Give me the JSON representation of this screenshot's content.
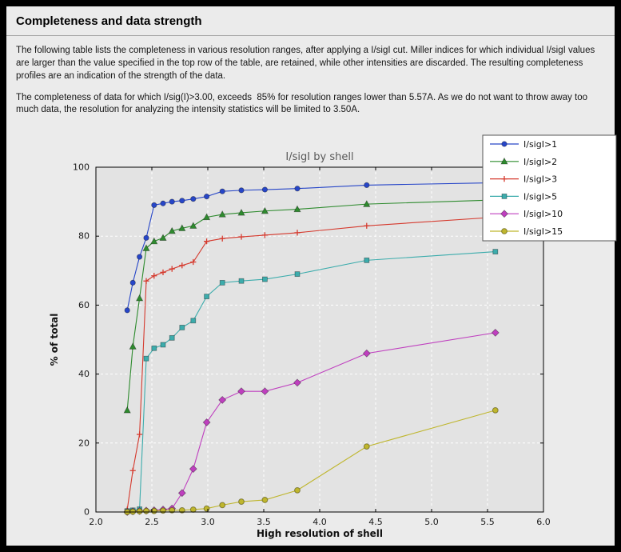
{
  "page": {
    "title": "Completeness and data strength",
    "paragraph1": "The following table lists the completeness in various resolution ranges, after applying a I/sigI cut. Miller indices for which individual I/sigI values are larger than the value specified in the top row of the table, are retained, while other intensities are discarded. The resulting completeness profiles are an indication of the strength of the data.",
    "paragraph2": "The completeness of data for which I/sig(I)>3.00, exceeds  85% for resolution ranges lower than 5.57A. As we do not want to throw away too much data, the resolution for analyzing the intensity statistics will be limited to 3.50A."
  },
  "chart_data": {
    "type": "line",
    "title": "I/sigI by shell",
    "xlabel": "High resolution of shell",
    "ylabel": "% of total",
    "xlim": [
      2.0,
      6.0
    ],
    "ylim": [
      0,
      100
    ],
    "xticks": [
      2.0,
      2.5,
      3.0,
      3.5,
      4.0,
      4.5,
      5.0,
      5.5,
      6.0
    ],
    "xtick_labels": [
      "2.0",
      "2.5",
      "3.0",
      "3.5",
      "4.0",
      "4.5",
      "5.0",
      "5.5",
      "6.0"
    ],
    "yticks": [
      0,
      20,
      40,
      60,
      80,
      100
    ],
    "ytick_labels": [
      "0",
      "20",
      "40",
      "60",
      "80",
      "100"
    ],
    "grid": true,
    "grid_color": "#ffffff",
    "plot_background": "#e3e3e3",
    "legend_position": "upper right",
    "x": [
      2.28,
      2.33,
      2.39,
      2.45,
      2.52,
      2.6,
      2.68,
      2.77,
      2.87,
      2.99,
      3.13,
      3.3,
      3.51,
      3.8,
      4.42,
      5.57
    ],
    "series": [
      {
        "name": "I/sigI>1",
        "color": "#2746c8",
        "marker": "circle",
        "values": [
          58.5,
          66.5,
          74.0,
          79.5,
          89.0,
          89.5,
          90.0,
          90.3,
          90.8,
          91.5,
          93.0,
          93.3,
          93.5,
          93.8,
          94.8,
          95.5
        ]
      },
      {
        "name": "I/sigI>2",
        "color": "#2e8b2e",
        "marker": "triangle",
        "values": [
          29.5,
          48.0,
          62.0,
          76.5,
          78.5,
          79.5,
          81.5,
          82.3,
          83.0,
          85.5,
          86.3,
          86.8,
          87.3,
          87.8,
          89.3,
          90.5
        ]
      },
      {
        "name": "I/sigI>3",
        "color": "#d5392d",
        "marker": "plus",
        "values": [
          0.7,
          12.0,
          22.5,
          67.0,
          68.5,
          69.5,
          70.5,
          71.5,
          72.5,
          78.5,
          79.3,
          79.8,
          80.3,
          81.0,
          83.0,
          85.5
        ]
      },
      {
        "name": "I/sigI>5",
        "color": "#3cacac",
        "marker": "square",
        "values": [
          0.3,
          0.5,
          0.8,
          44.5,
          47.5,
          48.5,
          50.5,
          53.5,
          55.5,
          62.5,
          66.5,
          67.0,
          67.5,
          69.0,
          73.0,
          75.5
        ]
      },
      {
        "name": "I/sigI>10",
        "color": "#bf3fbf",
        "marker": "diamond",
        "values": [
          0.0,
          0.2,
          0.3,
          0.4,
          0.5,
          0.7,
          1.0,
          5.5,
          12.5,
          26.0,
          32.5,
          35.0,
          35.0,
          37.5,
          46.0,
          52.0
        ]
      },
      {
        "name": "I/sigI>15",
        "color": "#bfb62e",
        "marker": "circle-open",
        "values": [
          0.0,
          0.1,
          0.2,
          0.3,
          0.3,
          0.4,
          0.5,
          0.5,
          0.7,
          1.0,
          2.0,
          3.0,
          3.5,
          6.3,
          19.0,
          29.5
        ]
      }
    ]
  }
}
